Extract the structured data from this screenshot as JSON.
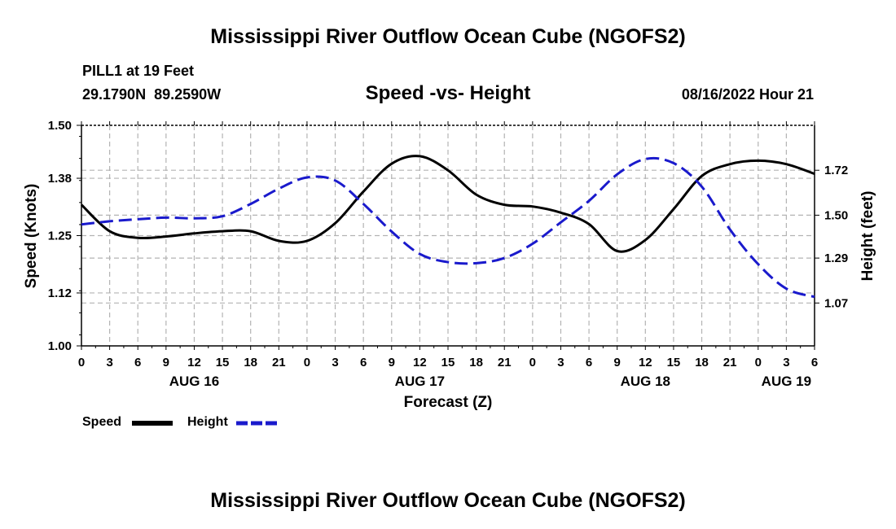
{
  "page": {
    "title": "Mississippi River Outflow Ocean Cube (NGOFS2)",
    "station": "PILL1 at 19 Feet",
    "coords": "29.1790N  89.2590W",
    "subtitle": "Speed -vs- Height",
    "datetime": "08/16/2022 Hour 21",
    "footer_title": "Mississippi River Outflow Ocean Cube (NGOFS2)"
  },
  "legend": {
    "speed_label": "Speed",
    "height_label": "Height"
  },
  "colors": {
    "speed": "#000000",
    "height": "#1a1acc",
    "grid": "#b3b3b3"
  },
  "chart_data": {
    "type": "line",
    "title": "Speed -vs- Height",
    "xlabel": "Forecast (Z)",
    "ylabel": "Speed (Knots)",
    "y2label": "Height (feet)",
    "x_unit": "hours since Aug 16 00Z",
    "xlim": [
      0,
      78
    ],
    "ylim": [
      1.0,
      1.5
    ],
    "y2lim": [
      0.86,
      1.94
    ],
    "x_ticks": [
      0,
      3,
      6,
      9,
      12,
      15,
      18,
      21,
      24,
      27,
      30,
      33,
      36,
      39,
      42,
      45,
      48,
      51,
      54,
      57,
      60,
      63,
      66,
      69,
      72,
      75,
      78
    ],
    "x_tick_labels": [
      "0",
      "3",
      "6",
      "9",
      "12",
      "15",
      "18",
      "21",
      "0",
      "3",
      "6",
      "9",
      "12",
      "15",
      "18",
      "21",
      "0",
      "3",
      "6",
      "9",
      "12",
      "15",
      "18",
      "21",
      "0",
      "3",
      "6"
    ],
    "day_labels": [
      {
        "x": 12,
        "label": "AUG 16"
      },
      {
        "x": 36,
        "label": "AUG 17"
      },
      {
        "x": 60,
        "label": "AUG 18"
      },
      {
        "x": 75,
        "label": "AUG 19"
      }
    ],
    "y_ticks": [
      1.0,
      1.12,
      1.25,
      1.38,
      1.5
    ],
    "y_tick_labels": [
      "1.00",
      "1.12",
      "1.25",
      "1.38",
      "1.50"
    ],
    "y2_ticks": [
      1.07,
      1.29,
      1.5,
      1.72
    ],
    "y2_tick_labels": [
      "1.07",
      "1.29",
      "1.50",
      "1.72"
    ],
    "grid": true,
    "series": [
      {
        "name": "Speed",
        "axis": "left",
        "style": "solid",
        "x": [
          0,
          3,
          6,
          9,
          12,
          15,
          18,
          21,
          24,
          27,
          30,
          33,
          36,
          39,
          42,
          45,
          48,
          51,
          54,
          57,
          60,
          63,
          66,
          69,
          72,
          75,
          78
        ],
        "values": [
          1.32,
          1.26,
          1.245,
          1.248,
          1.255,
          1.26,
          1.26,
          1.238,
          1.238,
          1.278,
          1.35,
          1.413,
          1.43,
          1.398,
          1.343,
          1.32,
          1.316,
          1.302,
          1.276,
          1.215,
          1.24,
          1.31,
          1.385,
          1.412,
          1.42,
          1.412,
          1.39
        ]
      },
      {
        "name": "Height",
        "axis": "right",
        "style": "dashed",
        "x": [
          0,
          3,
          6,
          9,
          12,
          15,
          18,
          21,
          24,
          27,
          30,
          33,
          36,
          39,
          42,
          45,
          48,
          51,
          54,
          57,
          60,
          63,
          66,
          69,
          72,
          75,
          78
        ],
        "values": [
          1.455,
          1.47,
          1.48,
          1.488,
          1.485,
          1.495,
          1.555,
          1.63,
          1.685,
          1.67,
          1.555,
          1.42,
          1.31,
          1.27,
          1.265,
          1.29,
          1.36,
          1.465,
          1.57,
          1.7,
          1.775,
          1.755,
          1.64,
          1.43,
          1.26,
          1.14,
          1.1
        ]
      }
    ]
  }
}
